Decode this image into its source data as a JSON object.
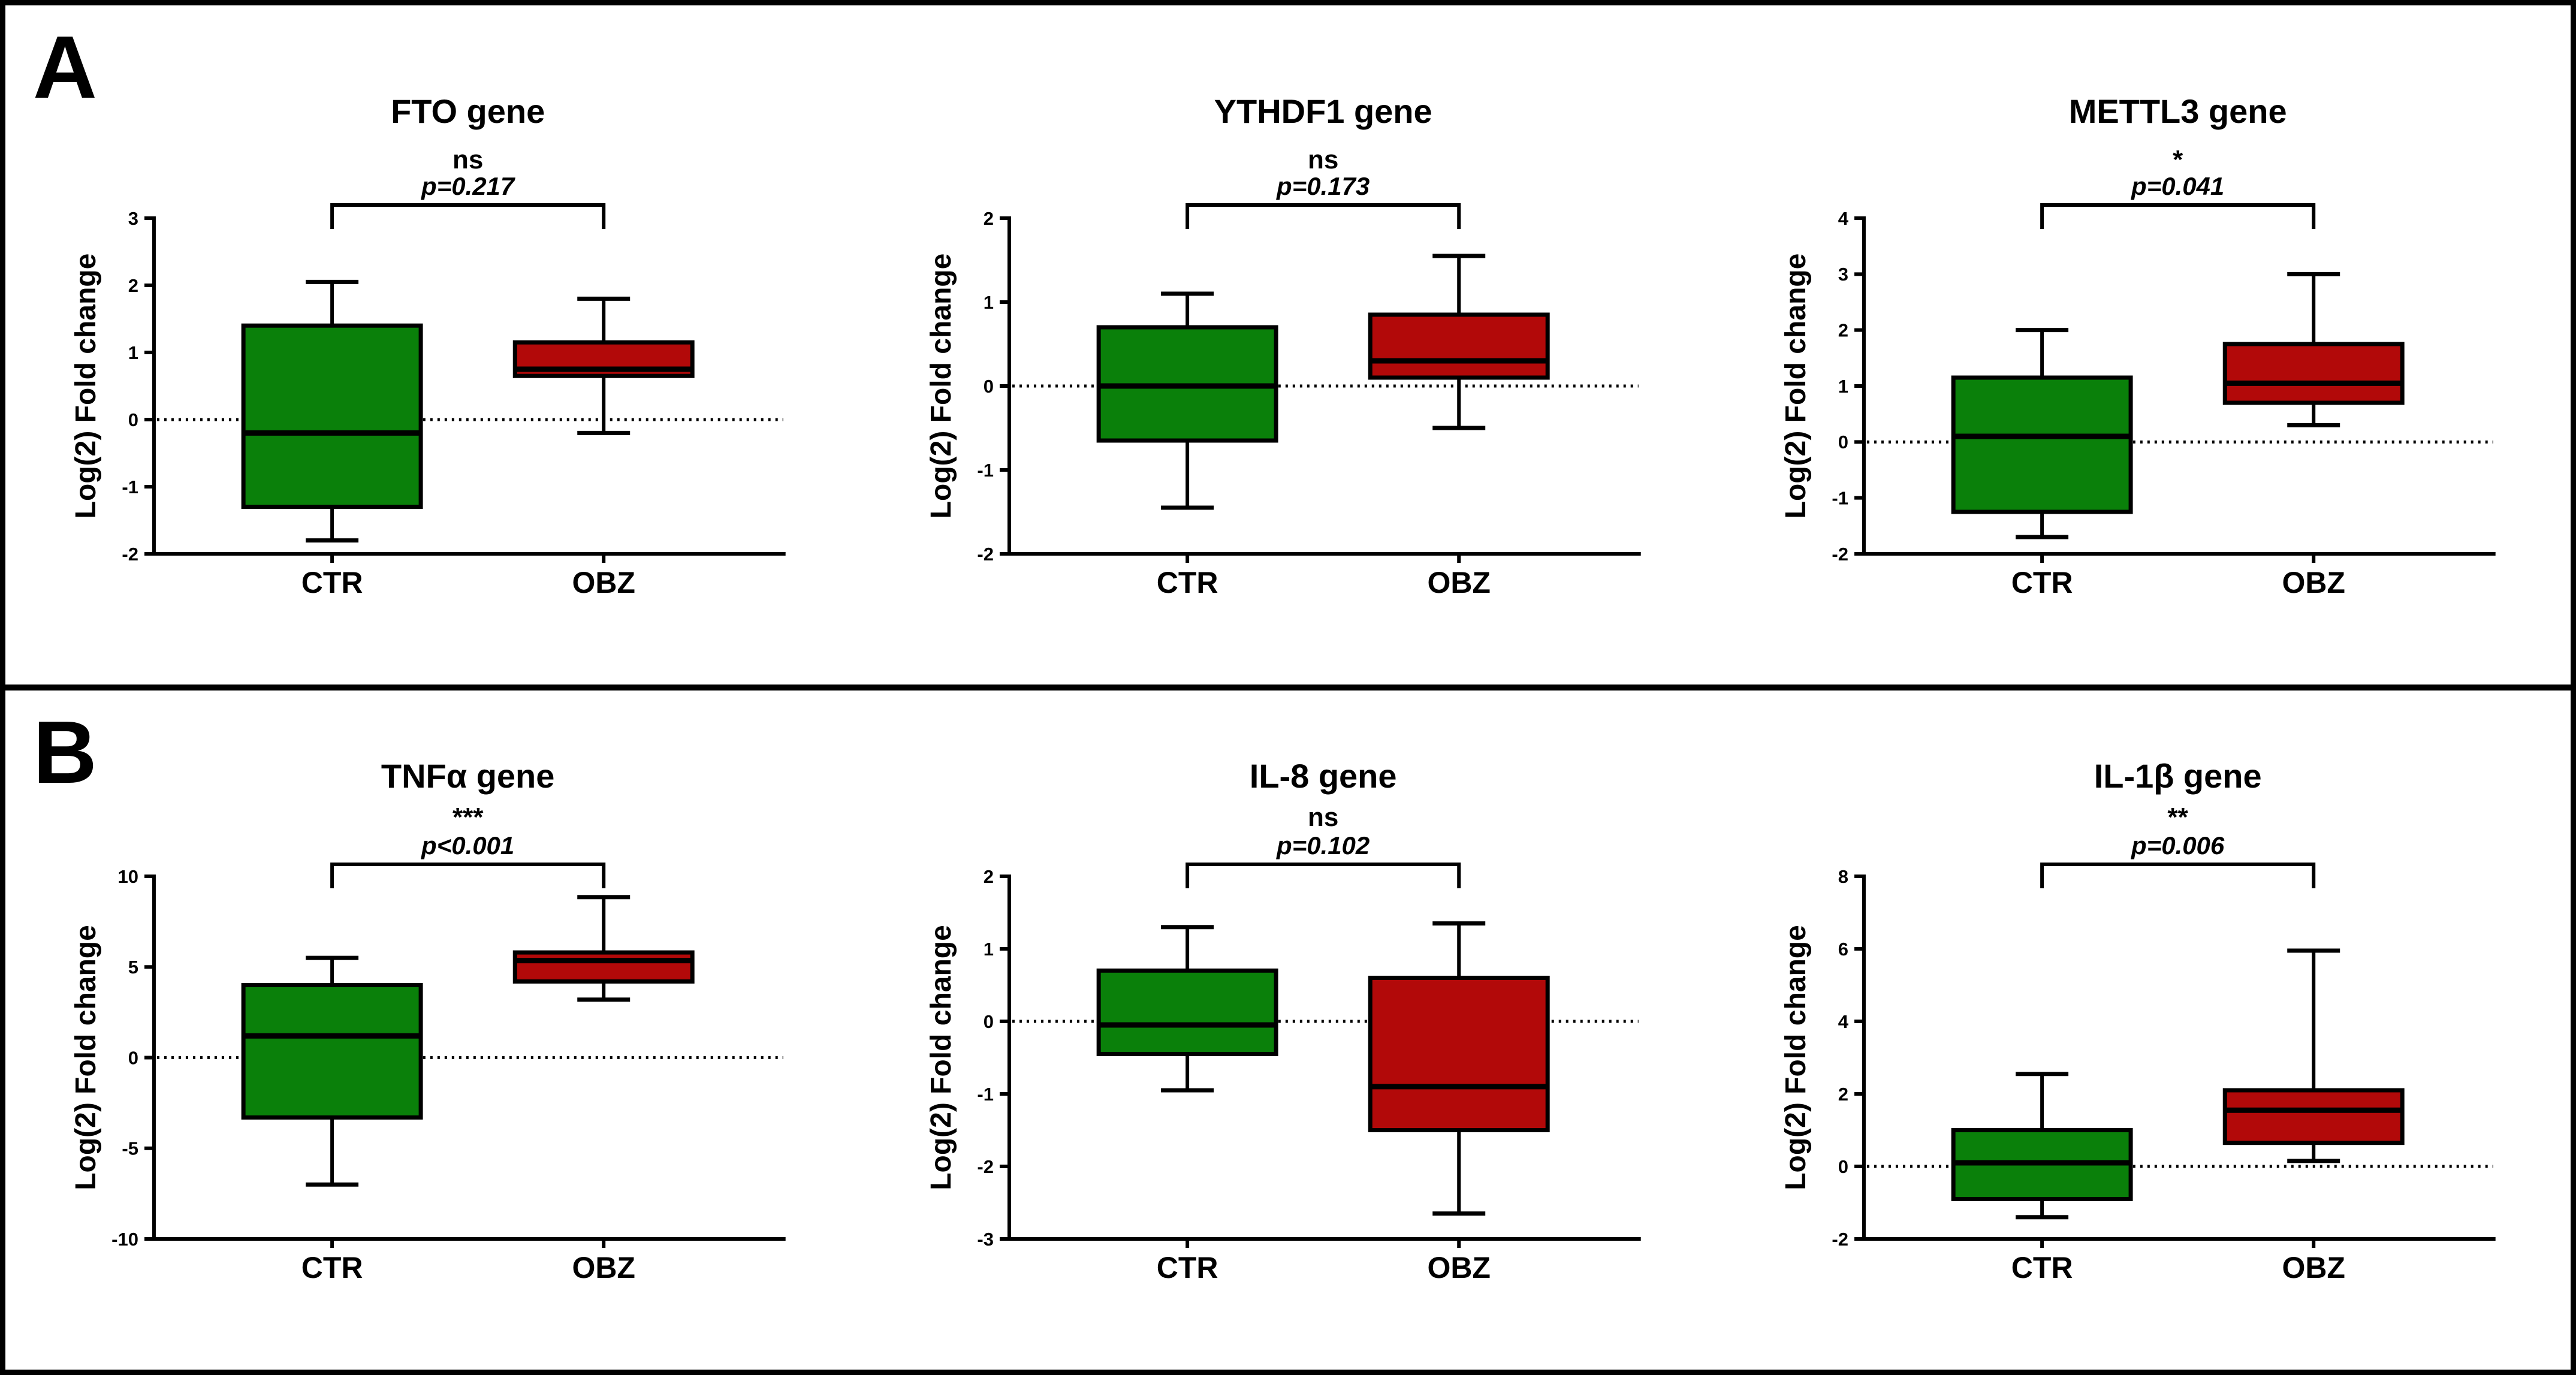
{
  "figure": {
    "panels": [
      {
        "label": "A"
      },
      {
        "label": "B"
      }
    ]
  },
  "colors": {
    "ctr_green": "#0a800a",
    "obz_red": "#b20909",
    "line_black": "#000000",
    "background": "#ffffff"
  },
  "chart_data": [
    {
      "type": "box",
      "panel": "A",
      "title": "FTO gene",
      "significance": "ns",
      "p_label": "p=0.217",
      "ylabel": "Log(2) Fold change",
      "ylim": [
        -2,
        3
      ],
      "yticks": [
        3,
        2,
        1,
        0,
        -1,
        -2
      ],
      "zero_line": 0,
      "grid": false,
      "categories": [
        "CTR",
        "OBZ"
      ],
      "series": [
        {
          "name": "CTR",
          "color": "#0a800a",
          "whisker_low": -1.8,
          "q1": -1.3,
          "median": -0.2,
          "q3": 1.4,
          "whisker_high": 2.05
        },
        {
          "name": "OBZ",
          "color": "#b20909",
          "whisker_low": -0.2,
          "q1": 0.65,
          "median": 0.75,
          "q3": 1.15,
          "whisker_high": 1.8
        }
      ]
    },
    {
      "type": "box",
      "panel": "A",
      "title": "YTHDF1 gene",
      "significance": "ns",
      "p_label": "p=0.173",
      "ylabel": "Log(2) Fold change",
      "ylim": [
        -2,
        2
      ],
      "yticks": [
        2,
        1,
        0,
        -1,
        -2
      ],
      "zero_line": 0,
      "grid": false,
      "categories": [
        "CTR",
        "OBZ"
      ],
      "series": [
        {
          "name": "CTR",
          "color": "#0a800a",
          "whisker_low": -1.45,
          "q1": -0.65,
          "median": 0.0,
          "q3": 0.7,
          "whisker_high": 1.1
        },
        {
          "name": "OBZ",
          "color": "#b20909",
          "whisker_low": -0.5,
          "q1": 0.1,
          "median": 0.3,
          "q3": 0.85,
          "whisker_high": 1.55
        }
      ]
    },
    {
      "type": "box",
      "panel": "A",
      "title": "METTL3 gene",
      "significance": "*",
      "p_label": "p=0.041",
      "ylabel": "Log(2) Fold change",
      "ylim": [
        -2,
        4
      ],
      "yticks": [
        4,
        3,
        2,
        1,
        0,
        -1,
        -2
      ],
      "zero_line": 0,
      "grid": false,
      "categories": [
        "CTR",
        "OBZ"
      ],
      "series": [
        {
          "name": "CTR",
          "color": "#0a800a",
          "whisker_low": -1.7,
          "q1": -1.25,
          "median": 0.1,
          "q3": 1.15,
          "whisker_high": 2.0
        },
        {
          "name": "OBZ",
          "color": "#b20909",
          "whisker_low": 0.3,
          "q1": 0.7,
          "median": 1.05,
          "q3": 1.75,
          "whisker_high": 3.0
        }
      ]
    },
    {
      "type": "box",
      "panel": "B",
      "title": "TNFα gene",
      "significance": "***",
      "p_label": "p<0.001",
      "ylabel": "Log(2) Fold change",
      "ylim": [
        -10,
        10
      ],
      "yticks": [
        10,
        5,
        0,
        -5,
        -10
      ],
      "zero_line": 0,
      "grid": false,
      "categories": [
        "CTR",
        "OBZ"
      ],
      "series": [
        {
          "name": "CTR",
          "color": "#0a800a",
          "whisker_low": -7.0,
          "q1": -3.3,
          "median": 1.2,
          "q3": 4.0,
          "whisker_high": 5.5
        },
        {
          "name": "OBZ",
          "color": "#b20909",
          "whisker_low": 3.2,
          "q1": 4.2,
          "median": 5.35,
          "q3": 5.8,
          "whisker_high": 8.85
        }
      ]
    },
    {
      "type": "box",
      "panel": "B",
      "title": "IL-8 gene",
      "significance": "ns",
      "p_label": "p=0.102",
      "ylabel": "Log(2) Fold change",
      "ylim": [
        -3,
        2
      ],
      "yticks": [
        2,
        1,
        0,
        -1,
        -2,
        -3
      ],
      "zero_line": 0,
      "grid": false,
      "categories": [
        "CTR",
        "OBZ"
      ],
      "series": [
        {
          "name": "CTR",
          "color": "#0a800a",
          "whisker_low": -0.95,
          "q1": -0.45,
          "median": -0.05,
          "q3": 0.7,
          "whisker_high": 1.3
        },
        {
          "name": "OBZ",
          "color": "#b20909",
          "whisker_low": -2.65,
          "q1": -1.5,
          "median": -0.9,
          "q3": 0.6,
          "whisker_high": 1.35
        }
      ]
    },
    {
      "type": "box",
      "panel": "B",
      "title": "IL-1β gene",
      "significance": "**",
      "p_label": "p=0.006",
      "ylabel": "Log(2) Fold change",
      "ylim": [
        -2,
        8
      ],
      "yticks": [
        8,
        6,
        4,
        2,
        0,
        -2
      ],
      "zero_line": 0,
      "grid": false,
      "categories": [
        "CTR",
        "OBZ"
      ],
      "series": [
        {
          "name": "CTR",
          "color": "#0a800a",
          "whisker_low": -1.4,
          "q1": -0.9,
          "median": 0.1,
          "q3": 1.0,
          "whisker_high": 2.55
        },
        {
          "name": "OBZ",
          "color": "#b20909",
          "whisker_low": 0.15,
          "q1": 0.65,
          "median": 1.55,
          "q3": 2.1,
          "whisker_high": 5.95
        }
      ]
    }
  ]
}
